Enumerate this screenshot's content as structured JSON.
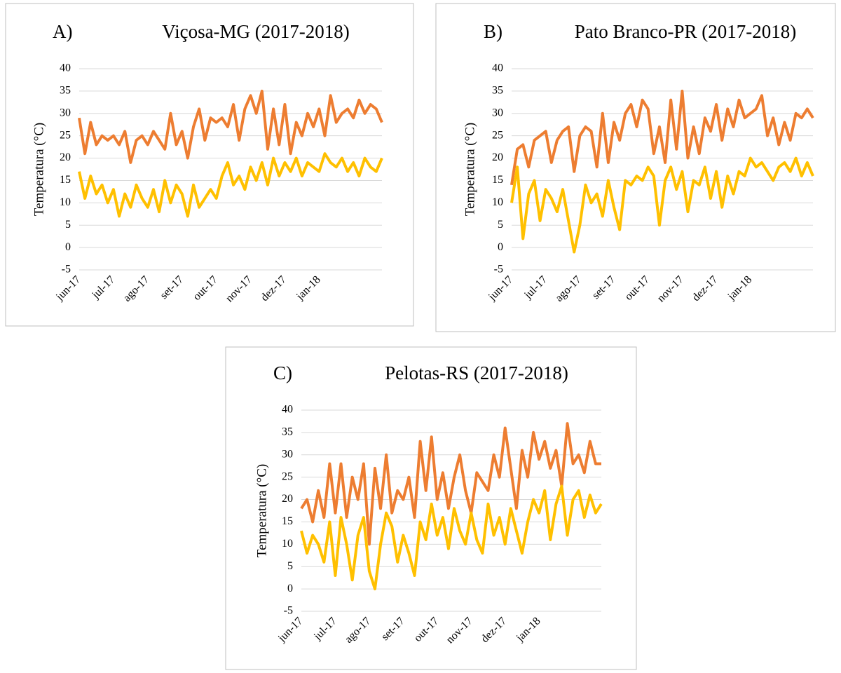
{
  "chart_data": [
    {
      "type": "line",
      "panel": "A)",
      "title": "Viçosa-MG (2017-2018)",
      "ylabel": "Temperatura (°C)",
      "categories": [
        "jun-17",
        null,
        null,
        null,
        null,
        null,
        "jul-17",
        null,
        null,
        null,
        null,
        null,
        "ago-17",
        null,
        null,
        null,
        null,
        null,
        "set-17",
        null,
        null,
        null,
        null,
        null,
        "out-17",
        null,
        null,
        null,
        null,
        null,
        "nov-17",
        null,
        null,
        null,
        null,
        null,
        "dez-17",
        null,
        null,
        null,
        null,
        null,
        "jan-18",
        null,
        null,
        null,
        null,
        null,
        null,
        null,
        null,
        null,
        null,
        null
      ],
      "series": [
        {
          "color": "#ed7d31",
          "values": [
            29,
            21,
            28,
            23,
            25,
            24,
            25,
            23,
            26,
            19,
            24,
            25,
            23,
            26,
            24,
            22,
            30,
            23,
            26,
            20,
            27,
            31,
            24,
            29,
            28,
            29,
            27,
            32,
            24,
            31,
            34,
            30,
            35,
            22,
            31,
            23,
            32,
            21,
            28,
            25,
            30,
            27,
            31,
            25,
            34,
            28,
            30,
            31,
            29,
            33,
            30,
            32,
            31,
            28
          ]
        },
        {
          "color": "#ffc000",
          "values": [
            17,
            11,
            16,
            12,
            14,
            10,
            13,
            7,
            12,
            9,
            14,
            11,
            9,
            13,
            8,
            15,
            10,
            14,
            12,
            7,
            14,
            9,
            11,
            13,
            11,
            16,
            19,
            14,
            16,
            13,
            18,
            15,
            19,
            14,
            20,
            16,
            19,
            17,
            20,
            16,
            19,
            18,
            17,
            21,
            19,
            18,
            20,
            17,
            19,
            16,
            20,
            18,
            17,
            20
          ]
        }
      ],
      "ylim": [
        -5,
        40
      ],
      "yticks": [
        -5,
        0,
        5,
        10,
        15,
        20,
        25,
        30,
        35,
        40
      ],
      "grid": true
    },
    {
      "type": "line",
      "panel": "B)",
      "title": "Pato Branco-PR (2017-2018)",
      "ylabel": "Temperatura (°C)",
      "categories": [
        "jun-17",
        null,
        null,
        null,
        null,
        null,
        "jul-17",
        null,
        null,
        null,
        null,
        null,
        "ago-17",
        null,
        null,
        null,
        null,
        null,
        "set-17",
        null,
        null,
        null,
        null,
        null,
        "out-17",
        null,
        null,
        null,
        null,
        null,
        "nov-17",
        null,
        null,
        null,
        null,
        null,
        "dez-17",
        null,
        null,
        null,
        null,
        null,
        "jan-18",
        null,
        null,
        null,
        null,
        null,
        null,
        null,
        null,
        null,
        null,
        null
      ],
      "series": [
        {
          "color": "#ed7d31",
          "values": [
            14,
            22,
            23,
            18,
            24,
            25,
            26,
            19,
            24,
            26,
            27,
            17,
            25,
            27,
            26,
            18,
            30,
            19,
            28,
            24,
            30,
            32,
            27,
            33,
            31,
            21,
            27,
            19,
            33,
            22,
            35,
            20,
            27,
            21,
            29,
            26,
            32,
            24,
            31,
            27,
            33,
            29,
            30,
            31,
            34,
            25,
            29,
            23,
            28,
            24,
            30,
            29,
            31,
            29
          ]
        },
        {
          "color": "#ffc000",
          "values": [
            10,
            18,
            2,
            12,
            15,
            6,
            13,
            11,
            8,
            13,
            6,
            -1,
            5,
            14,
            10,
            12,
            7,
            15,
            9,
            4,
            15,
            14,
            16,
            15,
            18,
            16,
            5,
            15,
            18,
            13,
            17,
            8,
            15,
            14,
            18,
            11,
            17,
            9,
            16,
            12,
            17,
            16,
            20,
            18,
            19,
            17,
            15,
            18,
            19,
            17,
            20,
            16,
            19,
            16
          ]
        }
      ],
      "ylim": [
        -5,
        40
      ],
      "yticks": [
        -5,
        0,
        5,
        10,
        15,
        20,
        25,
        30,
        35,
        40
      ],
      "grid": true
    },
    {
      "type": "line",
      "panel": "C)",
      "title": "Pelotas-RS (2017-2018)",
      "ylabel": "Temperatura (°C)",
      "categories": [
        "jun-17",
        null,
        null,
        null,
        null,
        null,
        "jul-17",
        null,
        null,
        null,
        null,
        null,
        "ago-17",
        null,
        null,
        null,
        null,
        null,
        "set-17",
        null,
        null,
        null,
        null,
        null,
        "out-17",
        null,
        null,
        null,
        null,
        null,
        "nov-17",
        null,
        null,
        null,
        null,
        null,
        "dez-17",
        null,
        null,
        null,
        null,
        null,
        "jan-18",
        null,
        null,
        null,
        null,
        null,
        null,
        null,
        null,
        null,
        null,
        null
      ],
      "series": [
        {
          "color": "#ed7d31",
          "values": [
            18,
            20,
            15,
            22,
            16,
            28,
            17,
            28,
            16,
            25,
            20,
            28,
            10,
            27,
            18,
            30,
            17,
            22,
            20,
            25,
            16,
            33,
            22,
            34,
            20,
            26,
            18,
            25,
            30,
            22,
            17,
            26,
            24,
            22,
            30,
            25,
            36,
            27,
            18,
            31,
            25,
            35,
            29,
            33,
            27,
            31,
            23,
            37,
            28,
            30,
            26,
            33,
            28,
            28
          ]
        },
        {
          "color": "#ffc000",
          "values": [
            13,
            8,
            12,
            10,
            6,
            15,
            3,
            16,
            10,
            2,
            12,
            16,
            4,
            0,
            10,
            17,
            14,
            6,
            12,
            8,
            3,
            15,
            11,
            19,
            12,
            16,
            9,
            18,
            13,
            10,
            17,
            11,
            8,
            19,
            12,
            16,
            10,
            18,
            13,
            8,
            15,
            20,
            17,
            22,
            11,
            19,
            23,
            12,
            20,
            22,
            16,
            21,
            17,
            19
          ]
        }
      ],
      "ylim": [
        -5,
        40
      ],
      "yticks": [
        -5,
        0,
        5,
        10,
        15,
        20,
        25,
        30,
        35,
        40
      ],
      "grid": true
    }
  ]
}
